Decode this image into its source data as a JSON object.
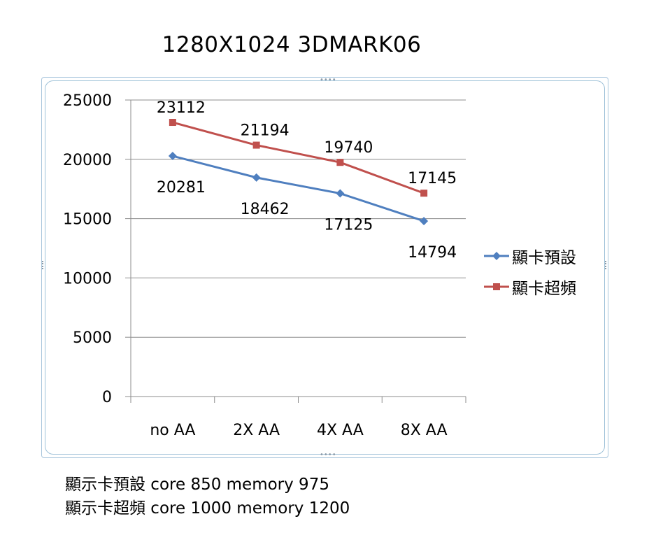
{
  "chart_data": {
    "type": "line",
    "title": "1280X1024  3DMARK06",
    "categories": [
      "no  AA",
      "2X AA",
      "4X AA",
      "8X AA"
    ],
    "y_ticks": [
      "0",
      "5000",
      "10000",
      "15000",
      "20000",
      "25000"
    ],
    "ylim": [
      0,
      25000
    ],
    "grid": true,
    "legend_position": "right",
    "series": [
      {
        "name": "顯卡預設",
        "values": [
          20281,
          18462,
          17125,
          14794
        ],
        "labels": [
          "20281",
          "18462",
          "17125",
          "14794"
        ],
        "color": "#4f7fbf",
        "marker": "diamond",
        "label_side": "below"
      },
      {
        "name": "顯卡超頻",
        "values": [
          23112,
          21194,
          19740,
          17145
        ],
        "labels": [
          "23112",
          "21194",
          "19740",
          "17145"
        ],
        "color": "#c0504d",
        "marker": "square",
        "label_side": "above"
      }
    ]
  },
  "notes": [
    "顯示卡預設 core 850  memory  975",
    "顯示卡超頻 core 1000 memory 1200"
  ],
  "frame_handle_glyph": "••••"
}
